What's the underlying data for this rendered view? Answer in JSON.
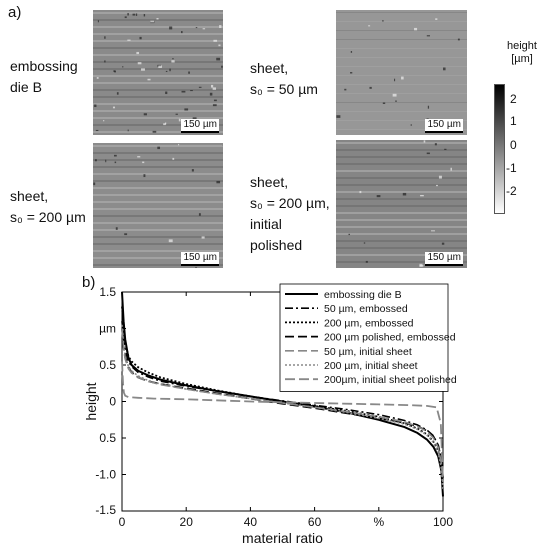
{
  "panel_a_label": "a)",
  "panel_b_label": "b)",
  "micrographs": [
    {
      "lines": [
        "embossing",
        "die B"
      ],
      "scale": "150 µm"
    },
    {
      "lines": [
        "sheet,",
        "s₀ = 50 µm"
      ],
      "scale": "150 µm"
    },
    {
      "lines": [
        "sheet,",
        "s₀ = 200 µm"
      ],
      "scale": "150 µm"
    },
    {
      "lines": [
        "sheet,",
        "s₀ = 200 µm,",
        "initial",
        "polished"
      ],
      "scale": "150 µm"
    }
  ],
  "colorbar": {
    "title_line1": "height",
    "title_line2": "[µm]",
    "ticks": [
      "2",
      "1",
      "0",
      "-1",
      "-2"
    ]
  },
  "chart_data": {
    "type": "line",
    "xlabel": "material ratio",
    "ylabel": "height",
    "x_unit_label": "%",
    "y_unit_label": "µm",
    "xlim": [
      0,
      100
    ],
    "ylim": [
      -1.5,
      1.5
    ],
    "x_ticks": [
      "0",
      "20",
      "40",
      "60",
      "%",
      "100"
    ],
    "y_ticks": [
      "1.5",
      "µm",
      "0.5",
      "0",
      "0.5",
      "-1.0",
      "-1.5"
    ],
    "legend_position": "top-right",
    "series": [
      {
        "name": "embossing die B",
        "color": "#000000",
        "dash": "solid",
        "width": 2,
        "x": [
          0,
          0.5,
          1,
          2,
          3,
          5,
          8,
          12,
          20,
          30,
          40,
          50,
          60,
          70,
          80,
          88,
          92,
          95,
          97,
          98.5,
          99.5,
          100
        ],
        "y": [
          1.5,
          1.1,
          0.85,
          0.6,
          0.5,
          0.42,
          0.36,
          0.3,
          0.22,
          0.14,
          0.07,
          0.0,
          -0.07,
          -0.15,
          -0.25,
          -0.35,
          -0.43,
          -0.52,
          -0.62,
          -0.75,
          -0.95,
          -1.3
        ]
      },
      {
        "name": "50 µm, embossed",
        "color": "#000000",
        "dash": "8 3 2 3",
        "width": 1.6,
        "x": [
          0,
          0.5,
          1,
          2,
          3,
          5,
          8,
          12,
          20,
          30,
          40,
          50,
          60,
          70,
          80,
          88,
          92,
          95,
          97,
          98.5,
          99.5,
          100
        ],
        "y": [
          1.1,
          0.85,
          0.7,
          0.55,
          0.48,
          0.4,
          0.34,
          0.28,
          0.21,
          0.14,
          0.07,
          0.01,
          -0.05,
          -0.11,
          -0.18,
          -0.26,
          -0.32,
          -0.39,
          -0.47,
          -0.6,
          -0.8,
          -1.05
        ]
      },
      {
        "name": "200 µm, embossed",
        "color": "#000000",
        "dash": "2 2",
        "width": 1.8,
        "x": [
          0,
          0.5,
          1,
          2,
          3,
          5,
          8,
          12,
          20,
          30,
          40,
          50,
          60,
          70,
          80,
          88,
          92,
          95,
          97,
          98.5,
          99.5,
          100
        ],
        "y": [
          1.3,
          1.0,
          0.8,
          0.62,
          0.55,
          0.47,
          0.4,
          0.33,
          0.24,
          0.15,
          0.07,
          0.0,
          -0.06,
          -0.13,
          -0.21,
          -0.3,
          -0.37,
          -0.45,
          -0.55,
          -0.68,
          -0.9,
          -1.2
        ]
      },
      {
        "name": "200 µm polished, embossed",
        "color": "#000000",
        "dash": "9 4",
        "width": 1.8,
        "x": [
          0,
          0.5,
          1,
          2,
          3,
          5,
          8,
          12,
          20,
          30,
          40,
          50,
          60,
          70,
          80,
          88,
          92,
          95,
          97,
          98.5,
          99.5,
          100
        ],
        "y": [
          1.0,
          0.75,
          0.6,
          0.47,
          0.4,
          0.33,
          0.28,
          0.24,
          0.18,
          0.11,
          0.04,
          -0.03,
          -0.09,
          -0.16,
          -0.23,
          -0.29,
          -0.34,
          -0.4,
          -0.48,
          -0.6,
          -0.8,
          -1.05
        ]
      },
      {
        "name": "50 µm, initial sheet",
        "color": "#888888",
        "dash": "9 4",
        "width": 1.6,
        "x": [
          0,
          0.5,
          1,
          2,
          3,
          5,
          8,
          12,
          20,
          30,
          40,
          50,
          60,
          70,
          80,
          88,
          92,
          95,
          97,
          98.5,
          99.5,
          100
        ],
        "y": [
          1.0,
          0.72,
          0.58,
          0.45,
          0.39,
          0.33,
          0.28,
          0.23,
          0.17,
          0.1,
          0.04,
          -0.02,
          -0.08,
          -0.14,
          -0.21,
          -0.28,
          -0.34,
          -0.41,
          -0.5,
          -0.63,
          -0.85,
          -1.1
        ]
      },
      {
        "name": "200 µm, initial sheet",
        "color": "#888888",
        "dash": "2 2",
        "width": 1.6,
        "x": [
          0,
          0.5,
          1,
          2,
          3,
          5,
          8,
          12,
          20,
          30,
          40,
          50,
          60,
          70,
          80,
          88,
          92,
          95,
          97,
          98.5,
          99.5,
          100
        ],
        "y": [
          1.05,
          0.78,
          0.62,
          0.48,
          0.42,
          0.35,
          0.29,
          0.24,
          0.17,
          0.1,
          0.04,
          -0.02,
          -0.08,
          -0.15,
          -0.23,
          -0.31,
          -0.38,
          -0.46,
          -0.56,
          -0.7,
          -0.92,
          -1.2
        ]
      },
      {
        "name": "200µm, initial sheet polished",
        "color": "#888888",
        "dash": "10 4",
        "width": 1.8,
        "x": [
          0,
          0.3,
          0.6,
          1,
          2,
          5,
          10,
          20,
          40,
          60,
          80,
          90,
          95,
          98,
          99.3,
          100
        ],
        "y": [
          0.55,
          0.25,
          0.12,
          0.08,
          0.06,
          0.05,
          0.04,
          0.03,
          0.0,
          -0.02,
          -0.04,
          -0.05,
          -0.06,
          -0.08,
          -0.3,
          -1.1
        ]
      }
    ]
  }
}
